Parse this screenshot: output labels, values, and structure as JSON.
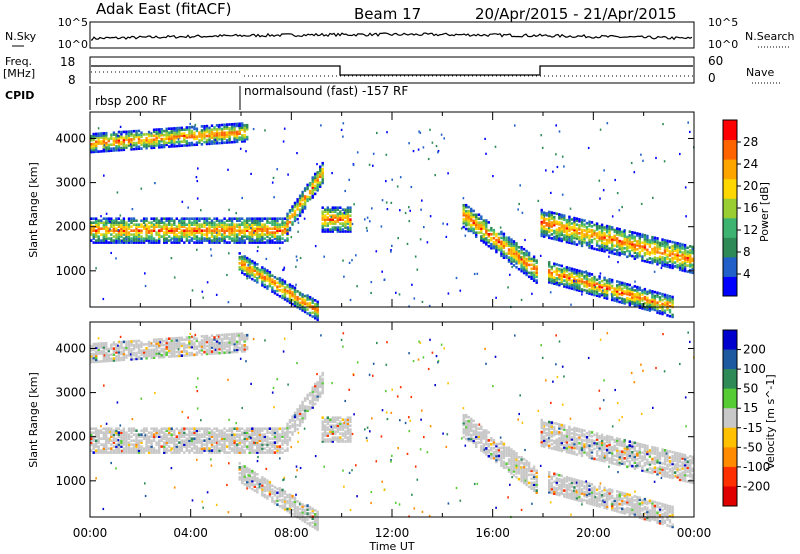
{
  "header": {
    "radar": "Adak East (fitACF)",
    "beam": "Beam 17",
    "dates": "20/Apr/2015 - 21/Apr/2015"
  },
  "top_panels": {
    "nsky_label": "N.Sky",
    "nsearch_label": "N.Search",
    "noise_ticks": [
      "10^5",
      "10^0"
    ],
    "freq_label": "Freq.",
    "freq_unit": "[MHz]",
    "freq_ticks": [
      "18",
      "8"
    ],
    "nave_label": "Nave",
    "nave_ticks": [
      "60",
      "0"
    ],
    "cpid_label": "CPID",
    "cpid_segments": [
      {
        "label": "rbsp 200 RF",
        "start_hour": 0,
        "end_hour": 6
      },
      {
        "label": "normalsound (fast) -157 RF",
        "start_hour": 6,
        "end_hour": 24
      }
    ]
  },
  "chart_data": [
    {
      "type": "heatmap",
      "parameter": "power",
      "xlabel": "",
      "ylabel": "Slant Range [km]",
      "x_ticks": [
        "00:00",
        "04:00",
        "08:00",
        "12:00",
        "16:00",
        "20:00",
        "00:00"
      ],
      "xlim_hours": [
        0,
        24
      ],
      "ylim": [
        180,
        4600
      ],
      "y_ticks": [
        1000,
        2000,
        3000,
        4000
      ],
      "colorbar": {
        "label": "Power [dB]",
        "ticks": [
          4,
          8,
          12,
          16,
          20,
          24,
          28
        ],
        "range": [
          0,
          32
        ]
      },
      "bands": [
        {
          "t0": 0.0,
          "t1": 6.2,
          "r0": 3800,
          "r1": 4050,
          "r1_end": 4300
        },
        {
          "t0": 0.0,
          "t1": 7.8,
          "r0": 1750,
          "r1": 2150
        },
        {
          "t0": 7.8,
          "t1": 9.2,
          "r0": 1950,
          "r1": 2250,
          "r1_end": 3400
        },
        {
          "t0": 5.9,
          "t1": 9.0,
          "r0": 1100,
          "r1": 1350,
          "r1_end": 250
        },
        {
          "t0": 9.2,
          "t1": 10.3,
          "r0": 2000,
          "r1": 2400
        },
        {
          "t0": 14.8,
          "t1": 17.8,
          "r0": 2100,
          "r1": 2500,
          "r1_end": 1200
        },
        {
          "t0": 17.9,
          "t1": 24.0,
          "r0": 1900,
          "r1": 2350,
          "r1_end": 1500
        },
        {
          "t0": 18.2,
          "t1": 23.2,
          "r0": 850,
          "r1": 1150,
          "r1_end": 350
        }
      ]
    },
    {
      "type": "heatmap",
      "parameter": "velocity",
      "xlabel": "Time UT",
      "ylabel": "Slant Range [km]",
      "x_ticks": [
        "00:00",
        "04:00",
        "08:00",
        "12:00",
        "16:00",
        "20:00",
        "00:00"
      ],
      "xlim_hours": [
        0,
        24
      ],
      "ylim": [
        180,
        4600
      ],
      "y_ticks": [
        1000,
        2000,
        3000,
        4000
      ],
      "colorbar": {
        "label": "Velocity [m s^-1]",
        "ticks": [
          "200",
          "100",
          "50",
          "15",
          "-15",
          "-50",
          "-100",
          "-200"
        ]
      },
      "ground_scatter_color": "#c8c8c8"
    }
  ],
  "colors": {
    "power_scale": [
      "#0000ff",
      "#2060c8",
      "#2e8b57",
      "#3cb371",
      "#9acd32",
      "#ffd700",
      "#ffa500",
      "#ff6400",
      "#ff0000"
    ],
    "velocity_scale": [
      "#0000cc",
      "#1e5aa0",
      "#2e8b57",
      "#55cc33",
      "#c8c8c8",
      "#ffc000",
      "#ff8c00",
      "#ff3000",
      "#e00000"
    ]
  }
}
